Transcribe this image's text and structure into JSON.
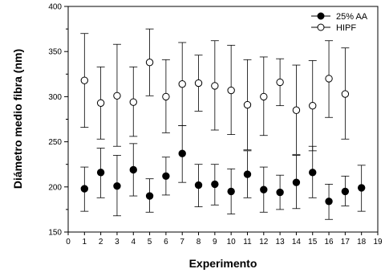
{
  "chart_data": {
    "type": "scatter",
    "title": "",
    "xlabel": "Experimento",
    "ylabel": "Diámetro medio fibra (nm)",
    "xlim": [
      0,
      19
    ],
    "ylim": [
      150,
      400
    ],
    "xticks": [
      0,
      1,
      2,
      3,
      4,
      5,
      6,
      7,
      8,
      9,
      10,
      11,
      12,
      13,
      14,
      15,
      16,
      17,
      18,
      19
    ],
    "yticks": [
      150,
      200,
      250,
      300,
      350,
      400
    ],
    "legend_position": "top-right",
    "grid": false,
    "series": [
      {
        "name": "25% AA",
        "marker": "filled-circle",
        "color": "#000000",
        "x": [
          1,
          2,
          3,
          4,
          5,
          6,
          7,
          8,
          9,
          10,
          11,
          12,
          13,
          14,
          15,
          16,
          17,
          18
        ],
        "y": [
          198,
          216,
          201,
          219,
          190,
          212,
          237,
          202,
          203,
          195,
          214,
          197,
          194,
          205,
          216,
          184,
          195,
          199
        ],
        "err_low": [
          173,
          188,
          168,
          190,
          172,
          191,
          205,
          178,
          180,
          170,
          188,
          172,
          175,
          176,
          188,
          164,
          179,
          173
        ],
        "err_high": [
          222,
          243,
          235,
          248,
          209,
          233,
          268,
          225,
          225,
          220,
          240,
          222,
          213,
          235,
          245,
          203,
          212,
          224
        ]
      },
      {
        "name": "HIPF",
        "marker": "open-circle",
        "color": "#000000",
        "x": [
          1,
          2,
          3,
          4,
          5,
          6,
          7,
          8,
          9,
          10,
          11,
          12,
          13,
          14,
          15,
          16,
          17
        ],
        "y": [
          318,
          293,
          301,
          294,
          338,
          300,
          314,
          315,
          312,
          307,
          291,
          300,
          316,
          285,
          290,
          320,
          303
        ],
        "err_low": [
          266,
          253,
          245,
          256,
          301,
          260,
          268,
          284,
          263,
          258,
          241,
          257,
          290,
          236,
          240,
          277,
          253
        ],
        "err_high": [
          370,
          333,
          358,
          333,
          375,
          341,
          360,
          346,
          362,
          357,
          341,
          344,
          342,
          335,
          340,
          362,
          354
        ]
      }
    ]
  }
}
